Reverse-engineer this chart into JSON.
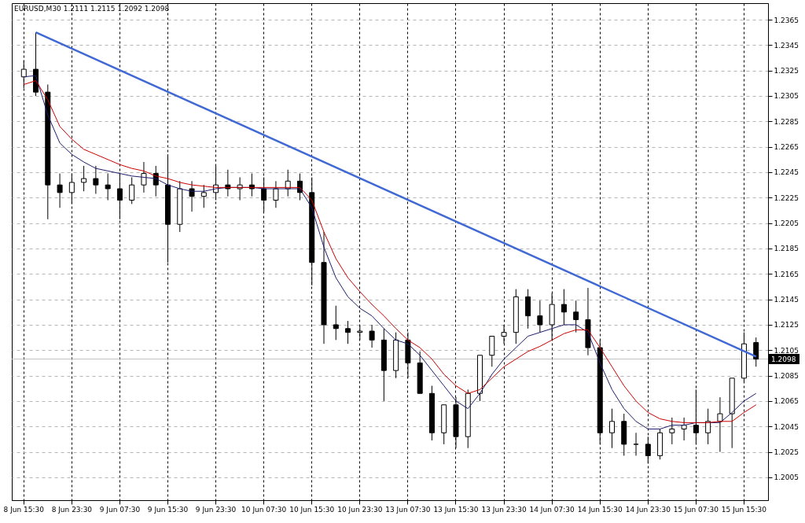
{
  "chart_data": {
    "type": "candlestick",
    "title": "EURUSD,M30  1.2111 1.2115 1.2092 1.2098",
    "categories": [
      "8 Jun 15:30",
      null,
      null,
      null,
      "8 Jun 23:30",
      null,
      null,
      null,
      "9 Jun 07:30",
      null,
      null,
      null,
      "9 Jun 15:30",
      null,
      null,
      null,
      "9 Jun 23:30",
      null,
      null,
      null,
      "10 Jun 07:30",
      null,
      null,
      null,
      "10 Jun 15:30",
      null,
      null,
      null,
      "10 Jun 23:30",
      null,
      null,
      null,
      "13 Jun 07:30",
      null,
      null,
      null,
      "13 Jun 15:30",
      null,
      null,
      null,
      "13 Jun 23:30",
      null,
      null,
      null,
      "14 Jun 07:30",
      null,
      null,
      null,
      "14 Jun 15:30",
      null,
      null,
      null,
      "14 Jun 23:30",
      null,
      null,
      null,
      "15 Jun 07:30",
      null,
      null,
      null,
      "15 Jun 15:30",
      null
    ],
    "ohlc": [
      [
        1.232,
        1.2333,
        1.2311,
        1.2326
      ],
      [
        1.2326,
        1.2355,
        1.2305,
        1.2308
      ],
      [
        1.2308,
        1.2314,
        1.2208,
        1.2235
      ],
      [
        1.2235,
        1.2244,
        1.2217,
        1.2229
      ],
      [
        1.2229,
        1.2244,
        1.222,
        1.2237
      ],
      [
        1.2237,
        1.225,
        1.223,
        1.224
      ],
      [
        1.224,
        1.225,
        1.2228,
        1.2235
      ],
      [
        1.2235,
        1.2244,
        1.2223,
        1.2232
      ],
      [
        1.2232,
        1.2244,
        1.2208,
        1.2223
      ],
      [
        1.2223,
        1.2241,
        1.222,
        1.2235
      ],
      [
        1.2235,
        1.2253,
        1.2229,
        1.2244
      ],
      [
        1.2244,
        1.225,
        1.2226,
        1.2235
      ],
      [
        1.2235,
        1.2259,
        1.2174,
        1.2204
      ],
      [
        1.2204,
        1.2238,
        1.2198,
        1.2232
      ],
      [
        1.2232,
        1.2238,
        1.2214,
        1.2226
      ],
      [
        1.2226,
        1.2235,
        1.2217,
        1.2229
      ],
      [
        1.2229,
        1.225,
        1.2223,
        1.2235
      ],
      [
        1.2235,
        1.2247,
        1.2226,
        1.2232
      ],
      [
        1.2232,
        1.2241,
        1.2223,
        1.2235
      ],
      [
        1.2235,
        1.2244,
        1.2226,
        1.2232
      ],
      [
        1.2232,
        1.2241,
        1.2214,
        1.2223
      ],
      [
        1.2223,
        1.2238,
        1.2217,
        1.2232
      ],
      [
        1.2232,
        1.2247,
        1.2226,
        1.2238
      ],
      [
        1.2238,
        1.2244,
        1.2223,
        1.2229
      ],
      [
        1.2229,
        1.2241,
        1.2156,
        1.2174
      ],
      [
        1.2174,
        1.2198,
        1.211,
        1.2125
      ],
      [
        1.2125,
        1.214,
        1.2113,
        1.2122
      ],
      [
        1.2122,
        1.2128,
        1.211,
        1.2119
      ],
      [
        1.2119,
        1.2125,
        1.2113,
        1.212
      ],
      [
        1.212,
        1.2125,
        1.2107,
        1.2113
      ],
      [
        1.2113,
        1.2122,
        1.2065,
        1.2089
      ],
      [
        1.2089,
        1.2119,
        1.2083,
        1.2113
      ],
      [
        1.2113,
        1.2119,
        1.2083,
        1.2095
      ],
      [
        1.2095,
        1.2104,
        1.2071,
        1.2071
      ],
      [
        1.2071,
        1.2077,
        1.2034,
        1.204
      ],
      [
        1.204,
        1.2062,
        1.2031,
        1.2062
      ],
      [
        1.2062,
        1.2068,
        1.2028,
        1.2037
      ],
      [
        1.2037,
        1.2074,
        1.2028,
        1.2071
      ],
      [
        1.2071,
        1.2101,
        1.2065,
        1.2101
      ],
      [
        1.2101,
        1.2116,
        1.2092,
        1.2116
      ],
      [
        1.2116,
        1.2125,
        1.211,
        1.2119
      ],
      [
        1.2119,
        1.2153,
        1.211,
        1.2147
      ],
      [
        1.2147,
        1.2153,
        1.2122,
        1.2132
      ],
      [
        1.2132,
        1.2144,
        1.2119,
        1.2125
      ],
      [
        1.2125,
        1.215,
        1.2113,
        1.2141
      ],
      [
        1.2141,
        1.2153,
        1.2125,
        1.2135
      ],
      [
        1.2135,
        1.2144,
        1.2119,
        1.2129
      ],
      [
        1.2129,
        1.2154,
        1.2101,
        1.2107
      ],
      [
        1.2107,
        1.2113,
        1.2031,
        1.204
      ],
      [
        1.204,
        1.2059,
        1.2028,
        1.2049
      ],
      [
        1.2049,
        1.2055,
        1.2022,
        1.2031
      ],
      [
        1.2031,
        1.204,
        1.2022,
        1.2031
      ],
      [
        1.2031,
        1.2037,
        1.2016,
        1.2022
      ],
      [
        1.2022,
        1.2043,
        1.2019,
        1.204
      ],
      [
        1.204,
        1.2052,
        1.2031,
        1.2043
      ],
      [
        1.2043,
        1.2052,
        1.2034,
        1.2046
      ],
      [
        1.2046,
        1.2074,
        1.2031,
        1.204
      ],
      [
        1.204,
        1.2059,
        1.2031,
        1.2049
      ],
      [
        1.2049,
        1.2068,
        1.2025,
        1.2055
      ],
      [
        1.2055,
        1.2083,
        1.2028,
        1.2083
      ],
      [
        1.2083,
        1.2119,
        1.208,
        1.211
      ],
      [
        1.2111,
        1.2115,
        1.2092,
        1.2098
      ]
    ],
    "series": [
      {
        "type": "line",
        "color": "#1c1c6b",
        "values": [
          1.232,
          1.2321,
          1.229,
          1.2268,
          1.2259,
          1.2253,
          1.2248,
          1.2246,
          1.2244,
          1.2242,
          1.2241,
          1.224,
          1.2235,
          1.2232,
          1.223,
          1.223,
          1.2232,
          1.2233,
          1.2233,
          1.2233,
          1.2232,
          1.2232,
          1.2232,
          1.2232,
          1.2217,
          1.2186,
          1.2162,
          1.2147,
          1.2138,
          1.2132,
          1.2122,
          1.2113,
          1.211,
          1.2101,
          1.2089,
          1.2077,
          1.2065,
          1.2059,
          1.2071,
          1.2086,
          1.2098,
          1.2107,
          1.2116,
          1.2119,
          1.2122,
          1.2125,
          1.2125,
          1.2119,
          1.2095,
          1.2074,
          1.2059,
          1.2049,
          1.2043,
          1.2043,
          1.2046,
          1.2046,
          1.2048,
          1.2048,
          1.2048,
          1.2056,
          1.2065,
          1.2071
        ]
      },
      {
        "type": "line",
        "color": "#cc0000",
        "values": [
          1.2314,
          1.2317,
          1.2302,
          1.2281,
          1.2271,
          1.2263,
          1.2259,
          1.2255,
          1.2251,
          1.2248,
          1.2246,
          1.2242,
          1.224,
          1.2237,
          1.2235,
          1.2234,
          1.2233,
          1.2233,
          1.2233,
          1.2233,
          1.2233,
          1.2233,
          1.2233,
          1.2233,
          1.2223,
          1.2198,
          1.2177,
          1.2162,
          1.2151,
          1.2141,
          1.2132,
          1.2122,
          1.2113,
          1.2107,
          1.2098,
          1.2086,
          1.2077,
          1.2071,
          1.2074,
          1.2083,
          1.2092,
          1.2098,
          1.2104,
          1.2108,
          1.2113,
          1.2118,
          1.2121,
          1.2121,
          1.2107,
          1.2092,
          1.2077,
          1.2065,
          1.2056,
          1.2051,
          1.2049,
          1.2048,
          1.2048,
          1.2048,
          1.2049,
          1.2049,
          1.2056,
          1.2062
        ]
      },
      {
        "type": "line",
        "color": "#4169d4",
        "values": [
          null,
          1.2355,
          null,
          null,
          null,
          null,
          null,
          null,
          null,
          null,
          null,
          null,
          null,
          null,
          null,
          null,
          null,
          null,
          null,
          null,
          null,
          null,
          null,
          null,
          null,
          null,
          null,
          null,
          null,
          null,
          null,
          null,
          null,
          null,
          null,
          null,
          null,
          null,
          null,
          null,
          null,
          null,
          null,
          null,
          null,
          null,
          null,
          null,
          null,
          null,
          null,
          null,
          null,
          null,
          null,
          null,
          null,
          null,
          null,
          null,
          null,
          1.21
        ]
      }
    ],
    "ylim": [
      1.1987,
      1.2378
    ],
    "yticks": [
      1.2005,
      1.2025,
      1.2045,
      1.2065,
      1.2085,
      1.2105,
      1.2125,
      1.2145,
      1.2165,
      1.2185,
      1.2205,
      1.2225,
      1.2245,
      1.2265,
      1.2285,
      1.2305,
      1.2325,
      1.2345,
      1.2365
    ],
    "grid": true,
    "ref_lines": [
      {
        "axis": "y",
        "value": 1.2098,
        "label": "1.2098",
        "color": "#c0c0c0"
      }
    ]
  }
}
